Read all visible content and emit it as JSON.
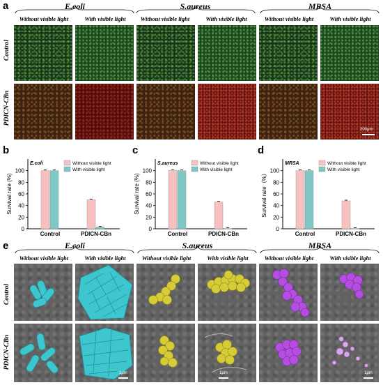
{
  "panels": {
    "a": "a",
    "b": "b",
    "c": "c",
    "d": "d",
    "e": "e"
  },
  "fluorescence": {
    "bacteria": [
      "E.coli",
      "S.aureus",
      "MRSA"
    ],
    "conditions": [
      "Without visible light",
      "With visible light"
    ],
    "rows": [
      "Control",
      "PDICN-CBn"
    ],
    "scale": "200μm"
  },
  "sem": {
    "bacteria": [
      "E.coli",
      "S.aureus",
      "MRSA"
    ],
    "conditions": [
      "Without visible light",
      "With visible light"
    ],
    "rows": [
      "Control",
      "PDICN-CBn"
    ],
    "scale": "1μm"
  },
  "colors": {
    "without_light": "#f7c1c1",
    "with_light": "#7fc7c4",
    "ecoli_sem": "#3ec6cf",
    "saureus_sem": "#d6cc38",
    "mrsa_sem": "#b44de0"
  },
  "chart_data": [
    {
      "type": "bar",
      "panel": "b",
      "tag": "E.coli",
      "categories": [
        "Control",
        "PDICN-CBn"
      ],
      "series": [
        {
          "name": "Without visible light",
          "values": [
            100,
            50
          ]
        },
        {
          "name": "With visible light",
          "values": [
            100,
            3
          ]
        }
      ],
      "ylabel": "Survival rate (%)",
      "ylim": [
        0,
        120
      ],
      "yticks": [
        "0",
        "20",
        "40",
        "60",
        "80",
        "100"
      ],
      "legend": "top-right"
    },
    {
      "type": "bar",
      "panel": "c",
      "tag": "S.aureus",
      "categories": [
        "Control",
        "PDICN-CBn"
      ],
      "series": [
        {
          "name": "Without visible light",
          "values": [
            100,
            46
          ]
        },
        {
          "name": "With visible light",
          "values": [
            100,
            0.5
          ]
        }
      ],
      "ylabel": "Survival rate (%)",
      "ylim": [
        0,
        120
      ],
      "yticks": [
        "0",
        "20",
        "40",
        "60",
        "80",
        "100"
      ],
      "legend": "top-right"
    },
    {
      "type": "bar",
      "panel": "d",
      "tag": "MRSA",
      "categories": [
        "Control",
        "PDICN-CBn"
      ],
      "series": [
        {
          "name": "Without visible light",
          "values": [
            100,
            48
          ]
        },
        {
          "name": "With visible light",
          "values": [
            100,
            0.5
          ]
        }
      ],
      "ylabel": "Survival rate（%）",
      "ylim": [
        0,
        120
      ],
      "yticks": [
        "0",
        "20",
        "40",
        "60",
        "80",
        "100"
      ],
      "legend": "top-right"
    }
  ]
}
